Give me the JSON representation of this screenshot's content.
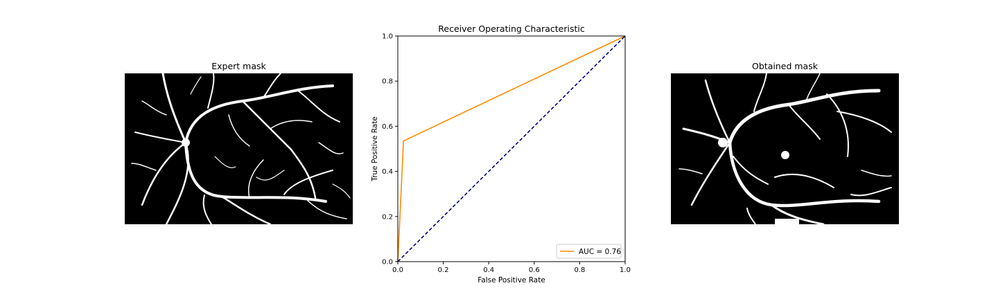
{
  "panels": {
    "left_title": "Expert mask",
    "right_title": "Obtained mask"
  },
  "colors": {
    "roc_line": "#ff8c00",
    "diagonal": "#000080",
    "mask_background": "#000000",
    "vessel": "#ffffff"
  },
  "chart_data": {
    "type": "line",
    "title": "Receiver Operating Characteristic",
    "xlabel": "False Positive Rate",
    "ylabel": "True Positive Rate",
    "xlim": [
      0,
      1
    ],
    "ylim": [
      0,
      1
    ],
    "xticks": [
      "0.0",
      "0.2",
      "0.4",
      "0.6",
      "0.8",
      "1.0"
    ],
    "yticks": [
      "0.0",
      "0.2",
      "0.4",
      "0.6",
      "0.8",
      "1.0"
    ],
    "grid": false,
    "legend_position": "lower right",
    "series": [
      {
        "name": "AUC = 0.76",
        "style": "solid",
        "color": "#ff8c00",
        "x": [
          0.0,
          0.025,
          1.0
        ],
        "y": [
          0.0,
          0.535,
          1.0
        ]
      },
      {
        "style": "dashed",
        "color": "#000080",
        "x": [
          0.0,
          1.0
        ],
        "y": [
          0.0,
          1.0
        ]
      }
    ]
  }
}
